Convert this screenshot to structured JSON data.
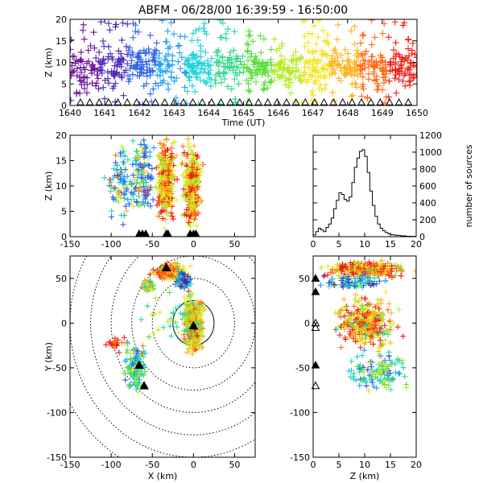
{
  "title": "ABFM - 06/28/00 16:39:59 - 16:50:00",
  "chart_data": [
    {
      "panel": "time-height",
      "type": "scatter",
      "xlabel": "Time (UT)",
      "ylabel": "Z (km)",
      "xlim": [
        1640,
        1650
      ],
      "ylim": [
        0,
        20
      ],
      "x_ticks": [
        "1640",
        "1641",
        "1642",
        "1643",
        "1644",
        "1645",
        "1646",
        "1647",
        "1648",
        "1649",
        "1650"
      ],
      "y_ticks": [
        "0",
        "5",
        "10",
        "15",
        "20"
      ],
      "color_encoding": "time (purple at 1640 to red at 1650)",
      "source_marker": "+",
      "station_marker": "triangle at Z=0",
      "bulk_altitude_km": [
        5,
        12
      ]
    },
    {
      "panel": "x-height",
      "type": "scatter",
      "xlabel": "",
      "ylabel": "Z (km)",
      "xlim": [
        -150,
        75
      ],
      "ylim": [
        0,
        20
      ],
      "x_ticks": [
        "-150",
        "-100",
        "-50",
        "0",
        "50"
      ],
      "y_ticks": [
        "0",
        "5",
        "10",
        "15",
        "20"
      ],
      "clusters": [
        {
          "x": -85,
          "z": 10
        },
        {
          "x": -65,
          "z": 12
        },
        {
          "x": -30,
          "z": 11
        },
        {
          "x": -2,
          "z": 10
        }
      ]
    },
    {
      "panel": "altitude-histogram",
      "type": "line",
      "xlabel": "",
      "ylabel": "number of sources",
      "xlim": [
        0,
        20
      ],
      "ylim": [
        0,
        1200
      ],
      "x_ticks": [
        "0",
        "5",
        "10",
        "15",
        "20"
      ],
      "y_ticks": [
        "0",
        "200",
        "400",
        "600",
        "800",
        "1000",
        "1200"
      ],
      "x": [
        0,
        0.5,
        1,
        1.5,
        2,
        2.5,
        3,
        3.5,
        4,
        4.5,
        5,
        5.5,
        6,
        6.5,
        7,
        7.5,
        8,
        8.5,
        9,
        9.5,
        10,
        10.5,
        11,
        11.5,
        12,
        12.5,
        13,
        13.5,
        14,
        14.5,
        15,
        15.5,
        16,
        17,
        18,
        19,
        20
      ],
      "y": [
        20,
        60,
        100,
        80,
        60,
        110,
        150,
        220,
        330,
        430,
        520,
        500,
        440,
        420,
        470,
        640,
        820,
        930,
        1010,
        1030,
        950,
        760,
        540,
        370,
        240,
        150,
        100,
        70,
        50,
        35,
        25,
        20,
        15,
        10,
        5,
        3,
        0
      ]
    },
    {
      "panel": "plan-view",
      "type": "scatter",
      "xlabel": "X (km)",
      "ylabel": "Y (km)",
      "xlim": [
        -150,
        75
      ],
      "ylim": [
        -150,
        75
      ],
      "x_ticks": [
        "-150",
        "-100",
        "-50",
        "0",
        "50"
      ],
      "y_ticks": [
        "-150",
        "-100",
        "-50",
        "0",
        "50"
      ],
      "range_rings_km": [
        25,
        50,
        75,
        100,
        125,
        150,
        175
      ],
      "clusters": [
        {
          "x": -30,
          "y": 60
        },
        {
          "x": -10,
          "y": 48
        },
        {
          "x": -55,
          "y": 42
        },
        {
          "x": 0,
          "y": 0
        },
        {
          "x": -70,
          "y": -50
        },
        {
          "x": -90,
          "y": -20
        }
      ],
      "stations": [
        {
          "x": -33,
          "y": 62
        },
        {
          "x": 0,
          "y": -3
        },
        {
          "x": -66,
          "y": -47
        },
        {
          "x": -60,
          "y": -70
        }
      ]
    },
    {
      "panel": "z-y-view",
      "type": "scatter",
      "xlabel": "Z (km)",
      "ylabel": "",
      "xlim": [
        0,
        20
      ],
      "ylim": [
        -150,
        75
      ],
      "x_ticks": [
        "0",
        "5",
        "10",
        "15",
        "20"
      ],
      "y_ticks": [
        "-150",
        "-100",
        "-50",
        "0",
        "50"
      ]
    }
  ],
  "colors": {
    "ramp": [
      "#6a0f9a",
      "#4b2ab8",
      "#2f62e8",
      "#1fa0f0",
      "#1ed3d8",
      "#2ed88a",
      "#59dd3a",
      "#b6ea25",
      "#f2e524",
      "#ffb21a",
      "#ff6a14",
      "#f21a10"
    ],
    "stations": "#000000",
    "rings": "#000000"
  }
}
